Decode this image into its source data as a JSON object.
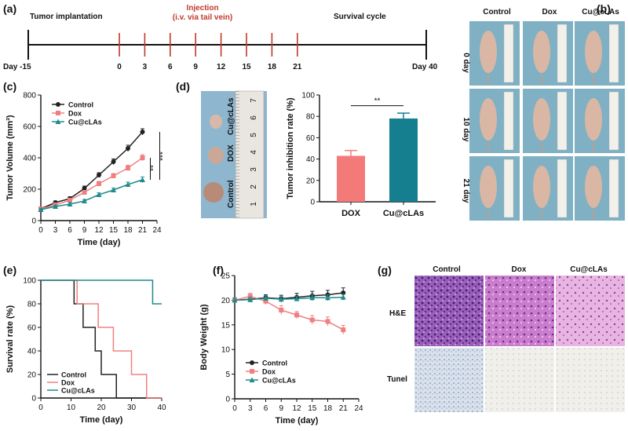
{
  "panels": {
    "a": "(a)",
    "b": "(b)",
    "c": "(c)",
    "d": "(d)",
    "e": "(e)",
    "f": "(f)",
    "g": "(g)"
  },
  "timeline": {
    "left_label": "Tumor implantation",
    "injection_line1": "Injection",
    "injection_line2": "(i.v. via tail vein)",
    "right_label": "Survival cycle",
    "start": "Day -15",
    "end": "Day 40",
    "days": [
      "0",
      "3",
      "6",
      "9",
      "12",
      "15",
      "18",
      "21"
    ],
    "colors": {
      "axis": "#111111",
      "tick": "#c0392b",
      "injection": "#c0392b"
    }
  },
  "photos_b": {
    "columns": [
      "Control",
      "Dox",
      "Cu@cLAs"
    ],
    "rows": [
      "0 day",
      "10 day",
      "21 day"
    ]
  },
  "panel_d_photo": {
    "labels": [
      "Cu@cLAs",
      "DOX",
      "Control"
    ],
    "ruler_numbers": [
      "7",
      "6",
      "5",
      "4",
      "3",
      "2",
      "1"
    ]
  },
  "chart_data": [
    {
      "id": "c",
      "type": "line",
      "xlabel": "Time (day)",
      "ylabel": "Tumor Volume (mm³)",
      "x": [
        0,
        3,
        6,
        9,
        12,
        15,
        18,
        21
      ],
      "xlim": [
        0,
        24
      ],
      "xticks": [
        "0",
        "3",
        "6",
        "9",
        "12",
        "15",
        "18",
        "21",
        "24"
      ],
      "ylim": [
        0,
        800
      ],
      "yticks": [
        "0",
        "200",
        "400",
        "600",
        "800"
      ],
      "series": [
        {
          "name": "Control",
          "color": "#222222",
          "marker": "circle",
          "values": [
            75,
            115,
            140,
            205,
            290,
            375,
            460,
            565
          ],
          "err": [
            10,
            10,
            12,
            15,
            15,
            18,
            20,
            20
          ]
        },
        {
          "name": "Dox",
          "color": "#f08080",
          "marker": "square",
          "values": [
            75,
            100,
            130,
            180,
            235,
            285,
            335,
            400
          ],
          "err": [
            10,
            10,
            12,
            12,
            15,
            15,
            18,
            20
          ]
        },
        {
          "name": "Cu@cLAs",
          "color": "#1f8b8b",
          "marker": "triangle",
          "values": [
            70,
            90,
            105,
            125,
            165,
            195,
            230,
            260
          ],
          "err": [
            8,
            8,
            10,
            10,
            12,
            12,
            15,
            18
          ]
        }
      ],
      "sig": [
        "**",
        "***"
      ]
    },
    {
      "id": "d",
      "type": "bar",
      "ylabel": "Tumor inhibition rate (%)",
      "categories": [
        "DOX",
        "Cu@cLAs"
      ],
      "values": [
        43,
        78
      ],
      "err": [
        5,
        5
      ],
      "colors": [
        "#f47a7a",
        "#157f8f"
      ],
      "ylim": [
        0,
        100
      ],
      "yticks": [
        "0",
        "20",
        "40",
        "60",
        "80",
        "100"
      ],
      "sig": "**"
    },
    {
      "id": "e",
      "type": "line",
      "xlabel": "Time (day)",
      "ylabel": "Survival rate (%)",
      "xlim": [
        0,
        40
      ],
      "xticks": [
        "0",
        "10",
        "20",
        "30",
        "40"
      ],
      "ylim": [
        0,
        100
      ],
      "yticks": [
        "0",
        "20",
        "40",
        "60",
        "80",
        "100"
      ],
      "series": [
        {
          "name": "Control",
          "color": "#222222",
          "steps": [
            [
              0,
              100
            ],
            [
              11,
              100
            ],
            [
              11,
              80
            ],
            [
              14,
              80
            ],
            [
              14,
              60
            ],
            [
              18,
              60
            ],
            [
              18,
              40
            ],
            [
              20,
              40
            ],
            [
              20,
              20
            ],
            [
              25,
              20
            ],
            [
              25,
              0
            ],
            [
              40,
              0
            ]
          ]
        },
        {
          "name": "Dox",
          "color": "#f08080",
          "steps": [
            [
              0,
              100
            ],
            [
              12,
              100
            ],
            [
              12,
              80
            ],
            [
              19,
              80
            ],
            [
              19,
              60
            ],
            [
              24,
              60
            ],
            [
              24,
              40
            ],
            [
              30,
              40
            ],
            [
              30,
              20
            ],
            [
              35,
              20
            ],
            [
              35,
              0
            ],
            [
              40,
              0
            ]
          ]
        },
        {
          "name": "Cu@cLAs",
          "color": "#1f8b8b",
          "steps": [
            [
              0,
              100
            ],
            [
              37,
              100
            ],
            [
              37,
              80
            ],
            [
              40,
              80
            ]
          ]
        }
      ]
    },
    {
      "id": "f",
      "type": "line",
      "xlabel": "Time (day)",
      "ylabel": "Body Weight (g)",
      "x": [
        0,
        3,
        6,
        9,
        12,
        15,
        18,
        21
      ],
      "xlim": [
        0,
        24
      ],
      "xticks": [
        "0",
        "3",
        "6",
        "9",
        "12",
        "15",
        "18",
        "21",
        "24"
      ],
      "ylim": [
        0,
        25
      ],
      "yticks": [
        "0",
        "5",
        "10",
        "15",
        "20",
        "25"
      ],
      "series": [
        {
          "name": "Control",
          "color": "#222222",
          "marker": "circle",
          "values": [
            20,
            20.2,
            20.5,
            20.3,
            20.6,
            20.9,
            21.1,
            21.5
          ],
          "err": [
            0.5,
            0.6,
            0.6,
            0.7,
            0.8,
            0.9,
            0.9,
            1.0
          ]
        },
        {
          "name": "Dox",
          "color": "#f08080",
          "marker": "square",
          "values": [
            20,
            20.8,
            19.8,
            18,
            17,
            16,
            15.7,
            14
          ],
          "err": [
            0.5,
            0.6,
            0.7,
            0.9,
            0.7,
            0.9,
            0.9,
            0.9
          ]
        },
        {
          "name": "Cu@cLAs",
          "color": "#1f8b8b",
          "marker": "triangle",
          "values": [
            20,
            20.1,
            20.4,
            20.2,
            20.3,
            20.5,
            20.5,
            20.6
          ],
          "err": [
            0.4,
            0.5,
            0.5,
            0.5,
            0.5,
            0.6,
            0.6,
            0.6
          ]
        }
      ]
    }
  ],
  "panel_g": {
    "columns": [
      "Control",
      "Dox",
      "Cu@cLAs"
    ],
    "rows": [
      "H&E",
      "Tunel"
    ]
  }
}
